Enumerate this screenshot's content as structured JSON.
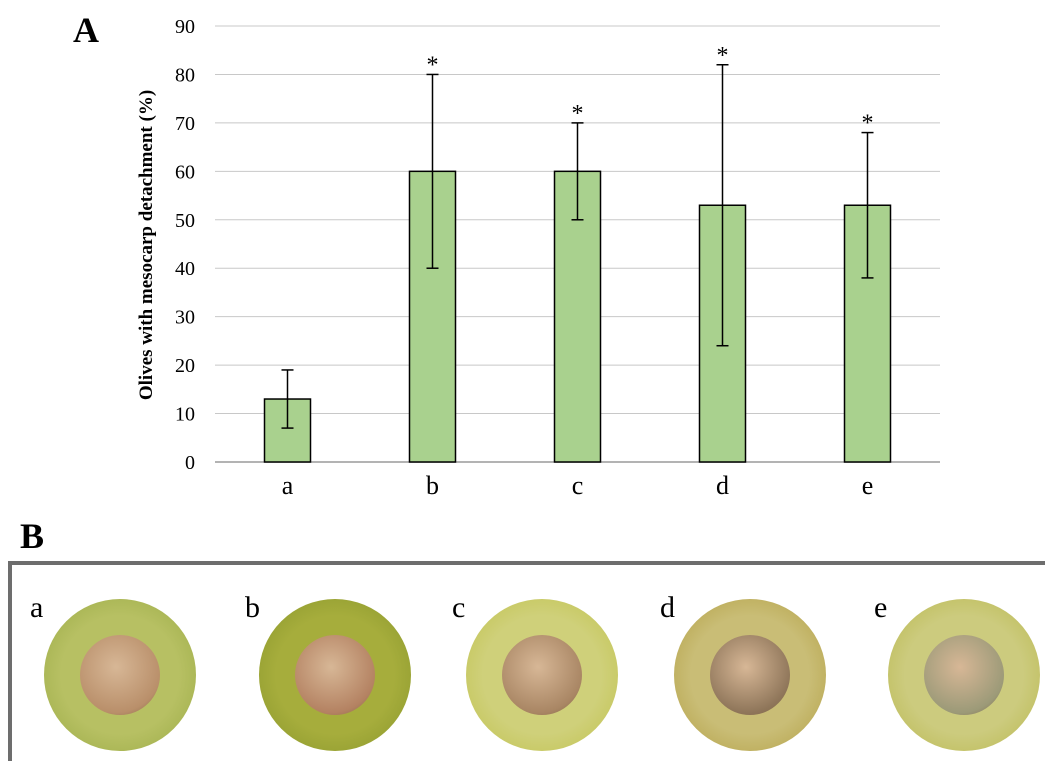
{
  "panel_a_label": "A",
  "panel_b_label": "B",
  "chart_data": {
    "type": "bar",
    "categories": [
      "a",
      "b",
      "c",
      "d",
      "e"
    ],
    "values": [
      13,
      60,
      60,
      53,
      53
    ],
    "error_upper": [
      19,
      80,
      70,
      82,
      68
    ],
    "error_lower": [
      7,
      40,
      50,
      24,
      38
    ],
    "significance": [
      "",
      "*",
      "*",
      "*",
      "*"
    ],
    "ylabel": "Olives with mesocarp detachment (%)",
    "xlabel": "",
    "title": "",
    "ylim": [
      0,
      90
    ],
    "yticks": [
      0,
      10,
      20,
      30,
      40,
      50,
      60,
      70,
      80,
      90
    ],
    "grid": true,
    "bar_color": "#a9d18e",
    "bar_edge_color": "#000000"
  },
  "photos": [
    {
      "label": "a",
      "outer": "#9fae4a",
      "ring": "#b7c063",
      "pit": "#b98f6a"
    },
    {
      "label": "b",
      "outer": "#8e9a2e",
      "ring": "#a6ad3c",
      "pit": "#b48262"
    },
    {
      "label": "c",
      "outer": "#c2c454",
      "ring": "#cfd07a",
      "pit": "#a98664"
    },
    {
      "label": "d",
      "outer": "#b6a44c",
      "ring": "#c9bd76",
      "pit": "#8f765a"
    },
    {
      "label": "e",
      "outer": "#bcbb56",
      "ring": "#cccb7e",
      "pit": "#9c9a78"
    }
  ]
}
